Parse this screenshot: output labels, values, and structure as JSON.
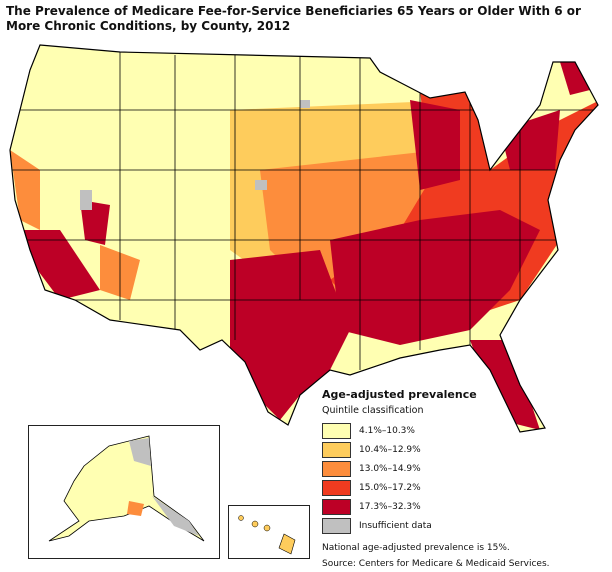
{
  "title": "The Prevalence of Medicare Fee-for-Service Beneficiaries 65 Years or Older With 6 or More Chronic Conditions, by County, 2012",
  "legend": {
    "heading": "Age-adjusted prevalence",
    "subheading": "Quintile classification",
    "items": [
      {
        "label": "4.1%–10.3%",
        "color": "#ffffb2"
      },
      {
        "label": "10.4%–12.9%",
        "color": "#fecc5c"
      },
      {
        "label": "13.0%–14.9%",
        "color": "#fd8d3c"
      },
      {
        "label": "15.0%–17.2%",
        "color": "#f03b20"
      },
      {
        "label": "17.3%–32.3%",
        "color": "#bd0026"
      },
      {
        "label": "Insufficient data",
        "color": "#c0c0c0"
      }
    ],
    "note": "National age-adjusted prevalence is 15%.",
    "source": "Source: Centers for Medicare & Medicaid Services."
  },
  "insets": [
    "Alaska",
    "Hawaii"
  ]
}
